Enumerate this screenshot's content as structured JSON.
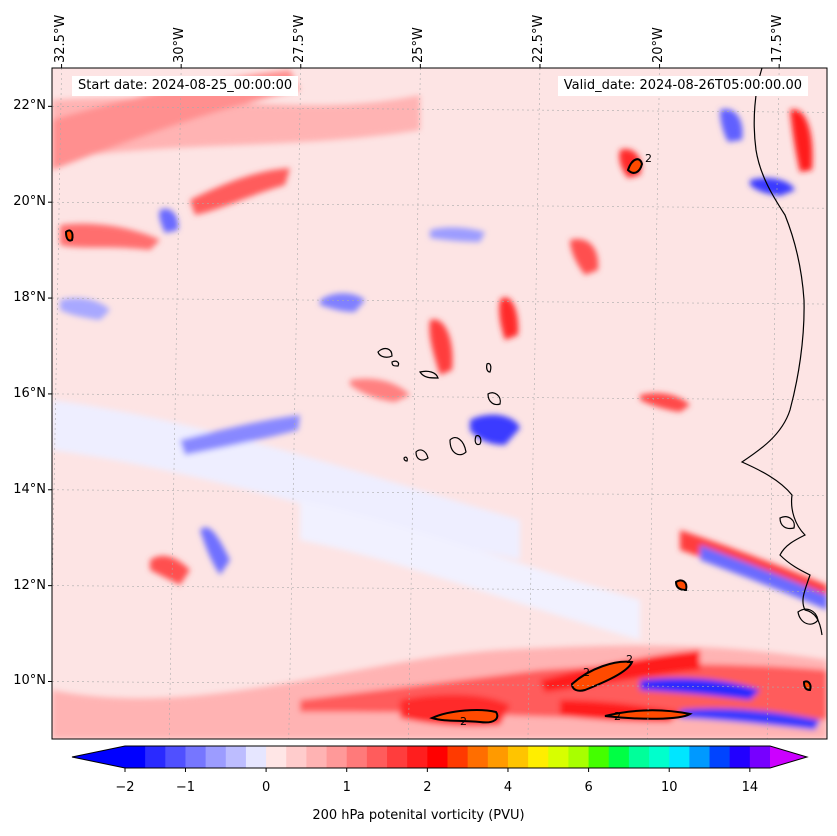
{
  "map": {
    "projection": "PlateCarree",
    "lon_range_deg": [
      -32.7,
      -16.5
    ],
    "lat_range_deg": [
      8.8,
      22.8
    ],
    "lon_ticks": [
      {
        "value": -32.5,
        "label": "32.5°W"
      },
      {
        "value": -30.0,
        "label": "30°W"
      },
      {
        "value": -27.5,
        "label": "27.5°W"
      },
      {
        "value": -25.0,
        "label": "25°W"
      },
      {
        "value": -22.5,
        "label": "22.5°W"
      },
      {
        "value": -20.0,
        "label": "20°W"
      },
      {
        "value": -17.5,
        "label": "17.5°W"
      }
    ],
    "lat_ticks": [
      {
        "value": 22,
        "label": "22°N"
      },
      {
        "value": 20,
        "label": "20°N"
      },
      {
        "value": 18,
        "label": "18°N"
      },
      {
        "value": 16,
        "label": "16°N"
      },
      {
        "value": 14,
        "label": "14°N"
      },
      {
        "value": 12,
        "label": "12°N"
      },
      {
        "value": 10,
        "label": "10°N"
      }
    ],
    "gridlines": true
  },
  "header": {
    "start_date": "Start date: 2024-08-25_00:00:00",
    "valid_date": "Valid_date: 2024-08-26T05:00:00.00"
  },
  "colorbar": {
    "label": "200 hPa potenital vorticity (PVU)",
    "under_color": "#0000ff",
    "over_color": "#cc00ff",
    "colors": [
      "#0000ff",
      "#2a2aff",
      "#5050ff",
      "#7676ff",
      "#9c9cff",
      "#bdbdff",
      "#e6e6ff",
      "#ffe6e6",
      "#ffcccc",
      "#ffb3b3",
      "#ff9999",
      "#ff7a7a",
      "#ff5c5c",
      "#ff3d3d",
      "#ff1e1e",
      "#ff0000",
      "#ff3a00",
      "#ff6e00",
      "#ff9a00",
      "#ffc400",
      "#ffee00",
      "#d7ff00",
      "#a8ff00",
      "#44ff00",
      "#00ff44",
      "#00ff9a",
      "#00ffcc",
      "#00e6ff",
      "#0099ff",
      "#0044ff",
      "#2200ff",
      "#7700ff"
    ],
    "tick_labels": [
      {
        "label": "−2",
        "index": 0
      },
      {
        "label": "−1",
        "index": 3
      },
      {
        "label": "0",
        "index": 7
      },
      {
        "label": "1",
        "index": 11
      },
      {
        "label": "2",
        "index": 15
      },
      {
        "label": "4",
        "index": 19
      },
      {
        "label": "6",
        "index": 23
      },
      {
        "label": "10",
        "index": 27
      },
      {
        "label": "14",
        "index": 31
      }
    ]
  },
  "contour_labels": [
    "2",
    "2",
    "2",
    "2",
    "2",
    "2",
    "2",
    "2"
  ],
  "colors": {
    "background_field": "#fde8e8",
    "coastline": "#000000",
    "contour_2pvu": "#000000"
  }
}
